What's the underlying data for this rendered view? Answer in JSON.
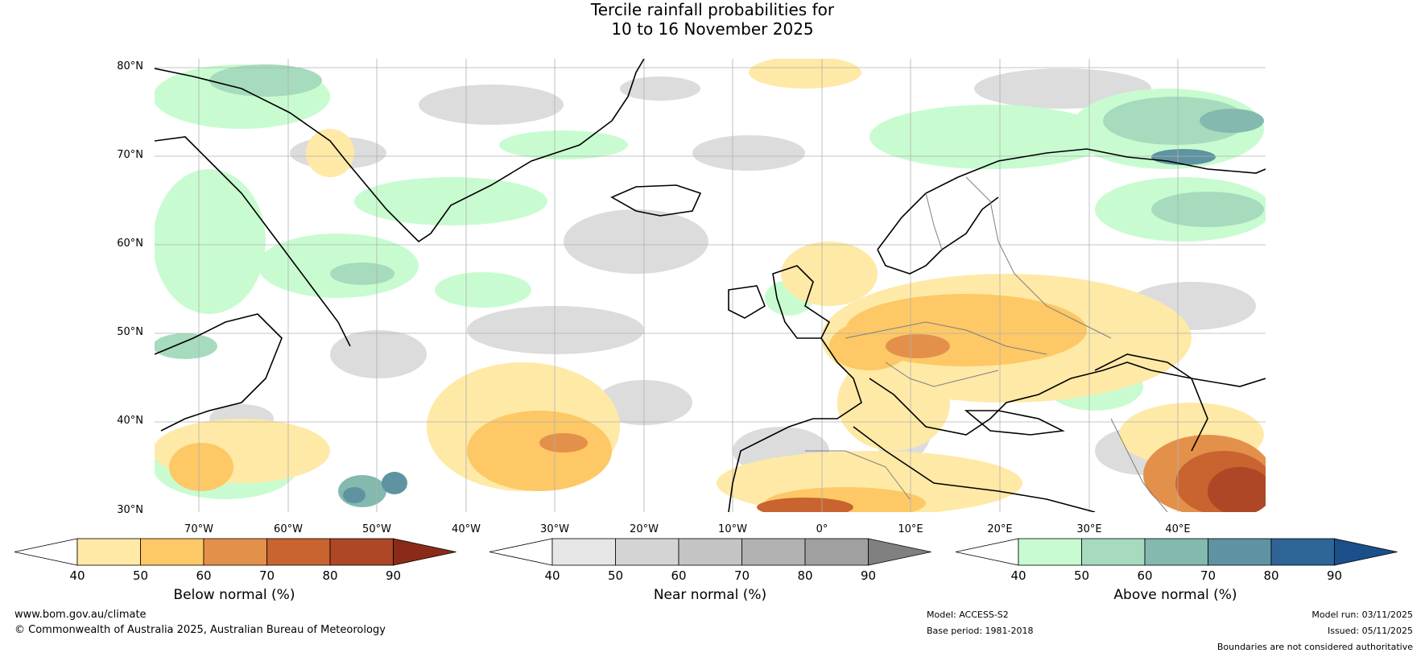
{
  "title": {
    "line1": "Tercile rainfall probabilities for",
    "line2": "10 to 16 November 2025"
  },
  "lat_labels": [
    "80°N",
    "70°N",
    "60°N",
    "50°N",
    "40°N",
    "30°N"
  ],
  "lon_labels": [
    "70°W",
    "60°W",
    "50°W",
    "40°W",
    "30°W",
    "20°W",
    "10°W",
    "0°",
    "10°E",
    "20°E",
    "30°E",
    "40°E"
  ],
  "colorbars": {
    "below": {
      "label": "Below normal (%)",
      "ticks": [
        "40",
        "50",
        "60",
        "70",
        "80",
        "90"
      ],
      "colors": [
        "#ffffff",
        "#ffe9a6",
        "#fdc865",
        "#e3914a",
        "#c9632f",
        "#ad4725",
        "#8b2a18"
      ]
    },
    "near": {
      "label": "Near normal (%)",
      "ticks": [
        "40",
        "50",
        "60",
        "70",
        "80",
        "90"
      ],
      "colors": [
        "#ffffff",
        "#e6e6e6",
        "#d4d4d4",
        "#c4c4c4",
        "#b2b2b2",
        "#a0a0a0",
        "#808080"
      ]
    },
    "above": {
      "label": "Above normal (%)",
      "ticks": [
        "40",
        "50",
        "60",
        "70",
        "80",
        "90"
      ],
      "colors": [
        "#ffffff",
        "#c8fcd0",
        "#a6dbbd",
        "#83b9af",
        "#5f93a1",
        "#2f6497",
        "#1a4f8a"
      ]
    }
  },
  "footer": {
    "website": "www.bom.gov.au/climate",
    "copyright": "© Commonwealth of Australia 2025, Australian Bureau of Meteorology",
    "model": "Model: ACCESS-S2",
    "base_period": "Base period: 1981-2018",
    "model_run": "Model run: 03/11/2025",
    "issued": "Issued: 05/11/2025",
    "disclaimer": "Boundaries are not considered authoritative"
  },
  "colors": {
    "land_outline": "#000000",
    "border": "#7f7f7f",
    "grid": "#b0b0b0"
  }
}
